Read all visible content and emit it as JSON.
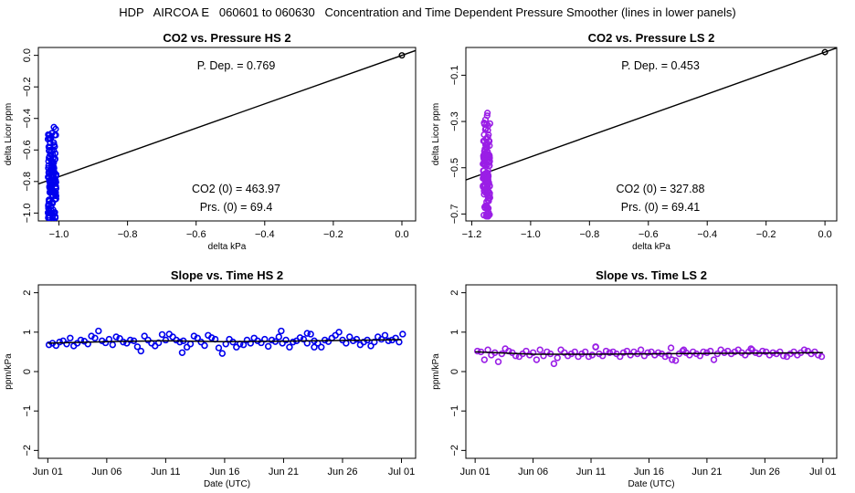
{
  "page": {
    "title": "HDP   AIRCOA E   060601 to 060630   Concentration and Time Dependent Pressure Smoother (lines in lower panels)"
  },
  "chart_data": [
    {
      "id": "hs-scatter",
      "type": "scatter",
      "title": "CO2 vs. Pressure HS 2",
      "xlabel": "delta kPa",
      "ylabel": "delta Licor ppm",
      "xlim": [
        -1.06,
        0.04
      ],
      "ylim": [
        -1.05,
        0.05
      ],
      "xticks": [
        -1.0,
        -0.8,
        -0.6,
        -0.4,
        -0.2,
        0.0
      ],
      "xtick_labels": [
        "−1.0",
        "−0.8",
        "−0.6",
        "−0.4",
        "−0.2",
        "0.0"
      ],
      "yticks": [
        0.0,
        -0.2,
        -0.4,
        -0.6,
        -0.8,
        -1.0
      ],
      "ytick_labels": [
        "0.0",
        "−0.2",
        "−0.4",
        "−0.6",
        "−0.8",
        "−1.0"
      ],
      "color": "#0000ee",
      "cluster": {
        "x_center": -1.02,
        "x_spread": 0.012,
        "y_min": -1.03,
        "y_max": -0.44,
        "y_center": -0.78,
        "n": 140
      },
      "origin_point": [
        0.0,
        0.0
      ],
      "fit_line": {
        "slope": 0.769,
        "intercept": 0.0
      },
      "annotations": {
        "p_dep": "P. Dep. =  0.769",
        "co2_0": "CO2 (0) =  463.97",
        "prs_0": "Prs. (0) =  69.4"
      }
    },
    {
      "id": "ls-scatter",
      "type": "scatter",
      "title": "CO2 vs. Pressure LS 2",
      "xlabel": "delta kPa",
      "ylabel": "delta Licor ppm",
      "xlim": [
        -1.22,
        0.04
      ],
      "ylim": [
        -0.73,
        0.02
      ],
      "xticks": [
        -1.2,
        -1.0,
        -0.8,
        -0.6,
        -0.4,
        -0.2,
        0.0
      ],
      "xtick_labels": [
        "−1.2",
        "−1.0",
        "−0.8",
        "−0.6",
        "−0.4",
        "−0.2",
        "0.0"
      ],
      "yticks": [
        -0.1,
        -0.3,
        -0.5,
        -0.7
      ],
      "ytick_labels": [
        "−0.1",
        "−0.3",
        "−0.5",
        "−0.7"
      ],
      "color": "#9a1ee6",
      "cluster": {
        "x_center": -1.15,
        "x_spread": 0.012,
        "y_min": -0.71,
        "y_max": -0.24,
        "y_center": -0.52,
        "n": 140
      },
      "origin_point": [
        0.0,
        0.0
      ],
      "fit_line": {
        "slope": 0.453,
        "intercept": 0.0
      },
      "annotations": {
        "p_dep": "P. Dep. =  0.453",
        "co2_0": "CO2 (0) =  327.88",
        "prs_0": "Prs. (0) =  69.41"
      }
    },
    {
      "id": "hs-slope",
      "type": "scatter",
      "title": "Slope vs. Time HS 2",
      "xlabel": "Date (UTC)",
      "ylabel": "ppm/kPa",
      "xlim": [
        -0.8,
        31.2
      ],
      "ylim": [
        -2.2,
        2.2
      ],
      "xticks": [
        0,
        5,
        10,
        15,
        20,
        25,
        30
      ],
      "xtick_labels": [
        "Jun 01",
        "Jun 06",
        "Jun 11",
        "Jun 16",
        "Jun 21",
        "Jun 26",
        "Jul 01"
      ],
      "yticks": [
        2,
        1,
        0,
        -1,
        -2
      ],
      "ytick_labels": [
        "2",
        "1",
        "0",
        "−1",
        "−2"
      ],
      "color": "#0000ee",
      "points": [
        [
          0.1,
          0.68
        ],
        [
          0.4,
          0.72
        ],
        [
          0.7,
          0.66
        ],
        [
          1.0,
          0.75
        ],
        [
          1.3,
          0.78
        ],
        [
          1.6,
          0.7
        ],
        [
          1.9,
          0.85
        ],
        [
          2.2,
          0.65
        ],
        [
          2.5,
          0.72
        ],
        [
          2.8,
          0.8
        ],
        [
          3.1,
          0.77
        ],
        [
          3.4,
          0.7
        ],
        [
          3.7,
          0.9
        ],
        [
          4.0,
          0.85
        ],
        [
          4.3,
          1.03
        ],
        [
          4.6,
          0.78
        ],
        [
          4.9,
          0.73
        ],
        [
          5.2,
          0.82
        ],
        [
          5.5,
          0.68
        ],
        [
          5.8,
          0.88
        ],
        [
          6.1,
          0.84
        ],
        [
          6.4,
          0.75
        ],
        [
          6.7,
          0.72
        ],
        [
          7.0,
          0.8
        ],
        [
          7.3,
          0.78
        ],
        [
          7.6,
          0.63
        ],
        [
          7.9,
          0.52
        ],
        [
          8.2,
          0.9
        ],
        [
          8.5,
          0.8
        ],
        [
          8.8,
          0.72
        ],
        [
          9.1,
          0.65
        ],
        [
          9.4,
          0.73
        ],
        [
          9.7,
          0.94
        ],
        [
          10.0,
          0.8
        ],
        [
          10.3,
          0.95
        ],
        [
          10.6,
          0.88
        ],
        [
          10.9,
          0.8
        ],
        [
          11.2,
          0.75
        ],
        [
          11.5,
          0.78
        ],
        [
          11.8,
          0.62
        ],
        [
          12.1,
          0.7
        ],
        [
          12.4,
          0.9
        ],
        [
          12.7,
          0.85
        ],
        [
          13.0,
          0.75
        ],
        [
          13.3,
          0.66
        ],
        [
          13.6,
          0.92
        ],
        [
          13.9,
          0.86
        ],
        [
          14.2,
          0.82
        ],
        [
          14.5,
          0.6
        ],
        [
          14.8,
          0.46
        ],
        [
          15.1,
          0.7
        ],
        [
          15.4,
          0.82
        ],
        [
          15.7,
          0.75
        ],
        [
          16.0,
          0.62
        ],
        [
          16.3,
          0.7
        ],
        [
          16.6,
          0.68
        ],
        [
          16.9,
          0.8
        ],
        [
          17.2,
          0.72
        ],
        [
          17.5,
          0.85
        ],
        [
          17.8,
          0.78
        ],
        [
          18.1,
          0.73
        ],
        [
          18.4,
          0.82
        ],
        [
          18.7,
          0.64
        ],
        [
          19.0,
          0.8
        ],
        [
          19.3,
          0.76
        ],
        [
          19.6,
          0.88
        ],
        [
          19.9,
          0.72
        ],
        [
          20.2,
          0.8
        ],
        [
          20.5,
          0.62
        ],
        [
          20.8,
          0.75
        ],
        [
          21.1,
          0.78
        ],
        [
          21.4,
          0.86
        ],
        [
          21.7,
          0.82
        ],
        [
          22.0,
          0.72
        ],
        [
          22.3,
          0.95
        ],
        [
          22.6,
          0.78
        ],
        [
          22.9,
          0.72
        ],
        [
          23.2,
          0.62
        ],
        [
          23.5,
          0.8
        ],
        [
          23.8,
          0.76
        ],
        [
          24.1,
          0.85
        ],
        [
          24.4,
          0.92
        ],
        [
          24.7,
          1.0
        ],
        [
          25.0,
          0.8
        ],
        [
          25.3,
          0.72
        ],
        [
          25.6,
          0.88
        ],
        [
          25.9,
          0.78
        ],
        [
          26.2,
          0.82
        ],
        [
          26.5,
          0.68
        ],
        [
          26.8,
          0.75
        ],
        [
          27.1,
          0.8
        ],
        [
          27.4,
          0.65
        ],
        [
          27.7,
          0.75
        ],
        [
          28.0,
          0.88
        ],
        [
          28.3,
          0.82
        ],
        [
          28.6,
          0.92
        ],
        [
          28.9,
          0.78
        ],
        [
          29.2,
          0.8
        ],
        [
          29.5,
          0.85
        ],
        [
          29.8,
          0.75
        ],
        [
          30.1,
          0.95
        ],
        [
          19.8,
          1.03
        ],
        [
          22.0,
          0.97
        ],
        [
          11.4,
          0.48
        ],
        [
          22.6,
          0.62
        ]
      ],
      "smoother": {
        "x": [
          0,
          5,
          10,
          15,
          20,
          25,
          30
        ],
        "y": [
          0.72,
          0.76,
          0.78,
          0.76,
          0.77,
          0.79,
          0.81
        ]
      }
    },
    {
      "id": "ls-slope",
      "type": "scatter",
      "title": "Slope vs. Time LS 2",
      "xlabel": "Date (UTC)",
      "ylabel": "ppm/kPa",
      "xlim": [
        -0.8,
        31.2
      ],
      "ylim": [
        -2.2,
        2.2
      ],
      "xticks": [
        0,
        5,
        10,
        15,
        20,
        25,
        30
      ],
      "xtick_labels": [
        "Jun 01",
        "Jun 06",
        "Jun 11",
        "Jun 16",
        "Jun 21",
        "Jun 26",
        "Jul 01"
      ],
      "yticks": [
        2,
        1,
        0,
        -1,
        -2
      ],
      "ytick_labels": [
        "2",
        "1",
        "0",
        "−1",
        "−2"
      ],
      "color": "#9a1ee6",
      "points": [
        [
          0.2,
          0.52
        ],
        [
          0.5,
          0.5
        ],
        [
          0.8,
          0.3
        ],
        [
          1.1,
          0.55
        ],
        [
          1.4,
          0.42
        ],
        [
          1.7,
          0.48
        ],
        [
          2.0,
          0.25
        ],
        [
          2.3,
          0.45
        ],
        [
          2.6,
          0.58
        ],
        [
          2.9,
          0.52
        ],
        [
          3.2,
          0.48
        ],
        [
          3.5,
          0.4
        ],
        [
          3.8,
          0.38
        ],
        [
          4.1,
          0.45
        ],
        [
          4.4,
          0.52
        ],
        [
          4.7,
          0.42
        ],
        [
          5.0,
          0.48
        ],
        [
          5.3,
          0.3
        ],
        [
          5.6,
          0.55
        ],
        [
          5.9,
          0.4
        ],
        [
          6.2,
          0.5
        ],
        [
          6.5,
          0.45
        ],
        [
          6.8,
          0.2
        ],
        [
          7.1,
          0.35
        ],
        [
          7.4,
          0.55
        ],
        [
          7.7,
          0.48
        ],
        [
          8.0,
          0.4
        ],
        [
          8.3,
          0.45
        ],
        [
          8.6,
          0.5
        ],
        [
          8.9,
          0.38
        ],
        [
          9.2,
          0.45
        ],
        [
          9.5,
          0.5
        ],
        [
          9.8,
          0.38
        ],
        [
          10.1,
          0.42
        ],
        [
          10.4,
          0.62
        ],
        [
          10.7,
          0.45
        ],
        [
          11.0,
          0.4
        ],
        [
          11.3,
          0.52
        ],
        [
          11.6,
          0.48
        ],
        [
          11.9,
          0.5
        ],
        [
          12.2,
          0.45
        ],
        [
          12.5,
          0.38
        ],
        [
          12.8,
          0.48
        ],
        [
          13.1,
          0.52
        ],
        [
          13.4,
          0.42
        ],
        [
          13.7,
          0.5
        ],
        [
          14.0,
          0.45
        ],
        [
          14.3,
          0.55
        ],
        [
          14.6,
          0.4
        ],
        [
          14.9,
          0.48
        ],
        [
          15.2,
          0.5
        ],
        [
          15.5,
          0.42
        ],
        [
          15.8,
          0.48
        ],
        [
          16.1,
          0.45
        ],
        [
          16.4,
          0.38
        ],
        [
          16.7,
          0.42
        ],
        [
          17.0,
          0.3
        ],
        [
          17.3,
          0.28
        ],
        [
          17.6,
          0.45
        ],
        [
          17.9,
          0.52
        ],
        [
          18.2,
          0.48
        ],
        [
          18.5,
          0.42
        ],
        [
          18.8,
          0.5
        ],
        [
          19.1,
          0.45
        ],
        [
          19.4,
          0.4
        ],
        [
          19.7,
          0.5
        ],
        [
          20.0,
          0.48
        ],
        [
          20.3,
          0.52
        ],
        [
          20.6,
          0.3
        ],
        [
          20.9,
          0.45
        ],
        [
          21.2,
          0.55
        ],
        [
          21.5,
          0.48
        ],
        [
          21.8,
          0.52
        ],
        [
          22.1,
          0.45
        ],
        [
          22.4,
          0.5
        ],
        [
          22.7,
          0.55
        ],
        [
          23.0,
          0.48
        ],
        [
          23.3,
          0.42
        ],
        [
          23.6,
          0.5
        ],
        [
          23.9,
          0.55
        ],
        [
          24.2,
          0.48
        ],
        [
          24.5,
          0.45
        ],
        [
          24.8,
          0.52
        ],
        [
          25.1,
          0.5
        ],
        [
          25.4,
          0.42
        ],
        [
          25.7,
          0.48
        ],
        [
          26.0,
          0.45
        ],
        [
          26.3,
          0.5
        ],
        [
          26.6,
          0.4
        ],
        [
          26.9,
          0.38
        ],
        [
          27.2,
          0.45
        ],
        [
          27.5,
          0.5
        ],
        [
          27.8,
          0.42
        ],
        [
          28.1,
          0.48
        ],
        [
          28.4,
          0.55
        ],
        [
          28.7,
          0.52
        ],
        [
          29.0,
          0.45
        ],
        [
          29.3,
          0.5
        ],
        [
          29.6,
          0.42
        ],
        [
          29.9,
          0.38
        ],
        [
          18.0,
          0.55
        ],
        [
          23.8,
          0.58
        ],
        [
          10.4,
          0.63
        ],
        [
          16.9,
          0.6
        ]
      ],
      "smoother": {
        "x": [
          0,
          5,
          10,
          15,
          20,
          25,
          30
        ],
        "y": [
          0.5,
          0.44,
          0.44,
          0.45,
          0.46,
          0.47,
          0.48
        ]
      }
    }
  ]
}
